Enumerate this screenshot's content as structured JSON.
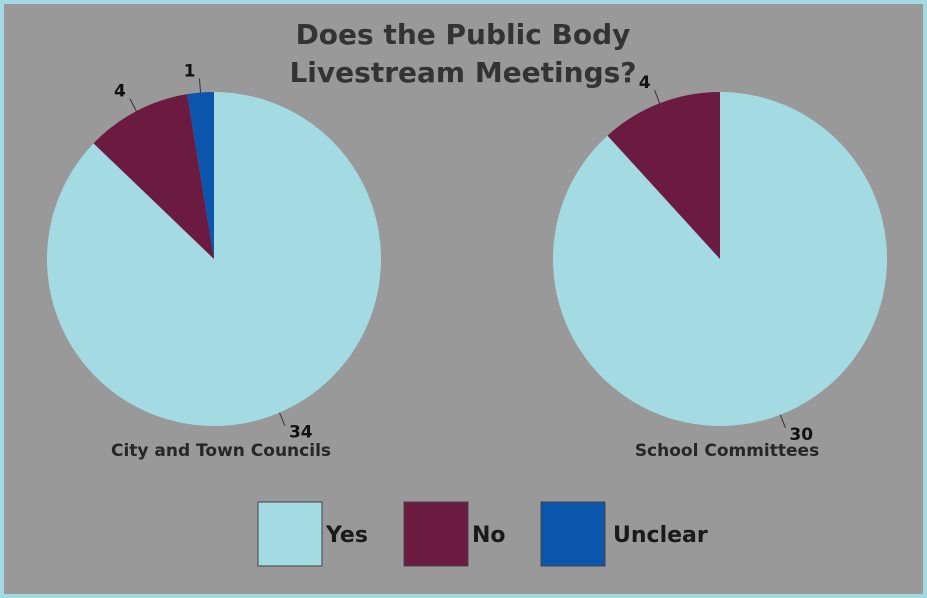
{
  "chart_data": {
    "type": "pie",
    "title_lines": [
      "Does the Public Body",
      "Livestream Meetings?"
    ],
    "categories": [
      "Yes",
      "No",
      "Unclear"
    ],
    "colors": {
      "Yes": "#a4dbe3",
      "No": "#6a1b3f",
      "Unclear": "#0b55ad"
    },
    "legend_position": "bottom",
    "pies": [
      {
        "name": "City and Town Councils",
        "values": [
          34,
          4,
          1
        ]
      },
      {
        "name": "School Committees",
        "values": [
          30,
          4,
          0
        ]
      }
    ]
  }
}
